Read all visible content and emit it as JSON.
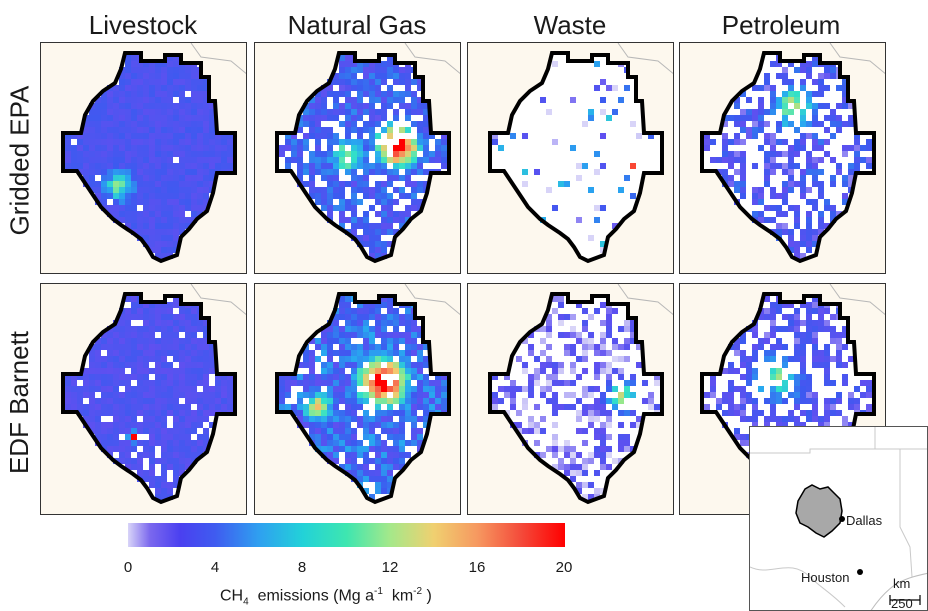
{
  "columns": [
    "Livestock",
    "Natural Gas",
    "Waste",
    "Petroleum"
  ],
  "rows": [
    "Gridded EPA",
    "EDF Barnett"
  ],
  "colorbar": {
    "ticks": [
      "0",
      "4",
      "8",
      "12",
      "16",
      "20"
    ],
    "label_main": "CH",
    "label_sub": "4",
    "label_tail1": "  emissions (Mg a",
    "label_sup1": "-1",
    "label_tail2": "  km",
    "label_sup2": "-2",
    "label_end": " )",
    "min": 0,
    "max": 20
  },
  "inset": {
    "city1": "Dallas",
    "city2": "Houston",
    "scale_unit": "km",
    "scale_value": "250"
  },
  "colors": {
    "panel_bg": "#fdf8ee",
    "boundary": "#000000",
    "region_fill": "#a8a8a8"
  }
}
